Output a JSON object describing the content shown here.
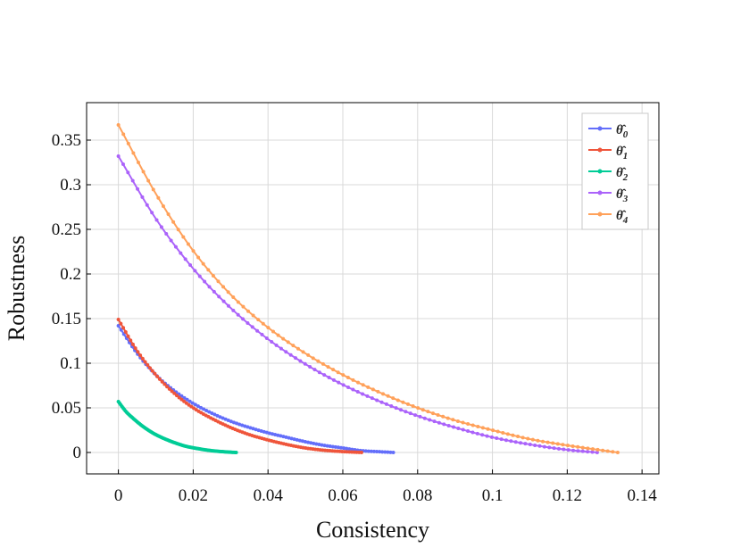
{
  "chart_data": {
    "type": "line",
    "title": "",
    "xlabel": "Consistency",
    "ylabel": "Robustness",
    "xlim": [
      -0.0085,
      0.1445
    ],
    "ylim": [
      -0.024,
      0.392
    ],
    "xticks": [
      0,
      0.02,
      0.04,
      0.06,
      0.08,
      0.1,
      0.12,
      0.14
    ],
    "xtick_labels": [
      "0",
      "0.02",
      "0.04",
      "0.06",
      "0.08",
      "0.1",
      "0.12",
      "0.14"
    ],
    "yticks": [
      0,
      0.05,
      0.1,
      0.15,
      0.2,
      0.25,
      0.3,
      0.35
    ],
    "ytick_labels": [
      "0",
      "0.05",
      "0.1",
      "0.15",
      "0.2",
      "0.25",
      "0.3",
      "0.35"
    ],
    "grid": true,
    "legend_position": "top-right",
    "series": [
      {
        "name": "θ̂0",
        "sub": "0",
        "color": "#636EFA",
        "x": [
          0,
          0.005,
          0.01,
          0.015,
          0.02,
          0.025,
          0.03,
          0.035,
          0.04,
          0.045,
          0.05,
          0.055,
          0.06,
          0.065,
          0.07,
          0.0735
        ],
        "y": [
          0.142,
          0.111,
          0.087,
          0.069,
          0.055,
          0.044,
          0.035,
          0.028,
          0.022,
          0.017,
          0.012,
          0.008,
          0.005,
          0.002,
          0.0008,
          0
        ]
      },
      {
        "name": "θ̂1",
        "sub": "1",
        "color": "#EF553B",
        "x": [
          0,
          0.005,
          0.01,
          0.015,
          0.02,
          0.025,
          0.03,
          0.035,
          0.04,
          0.045,
          0.05,
          0.055,
          0.06,
          0.065
        ],
        "y": [
          0.149,
          0.114,
          0.087,
          0.066,
          0.05,
          0.038,
          0.028,
          0.02,
          0.014,
          0.009,
          0.005,
          0.0025,
          0.001,
          0
        ]
      },
      {
        "name": "θ̂2",
        "sub": "2",
        "color": "#00CC96",
        "x": [
          0,
          0.002,
          0.004,
          0.006,
          0.008,
          0.01,
          0.012,
          0.015,
          0.018,
          0.021,
          0.024,
          0.027,
          0.03,
          0.0315
        ],
        "y": [
          0.057,
          0.046,
          0.038,
          0.031,
          0.025,
          0.02,
          0.016,
          0.011,
          0.007,
          0.0045,
          0.0025,
          0.0012,
          0.0003,
          0
        ]
      },
      {
        "name": "θ̂3",
        "sub": "3",
        "color": "#AB63FA",
        "x": [
          0,
          0.01,
          0.02,
          0.03,
          0.04,
          0.05,
          0.06,
          0.07,
          0.08,
          0.09,
          0.1,
          0.11,
          0.12,
          0.128
        ],
        "y": [
          0.332,
          0.262,
          0.206,
          0.162,
          0.127,
          0.099,
          0.076,
          0.057,
          0.041,
          0.028,
          0.017,
          0.009,
          0.003,
          0
        ]
      },
      {
        "name": "θ̂4",
        "sub": "4",
        "color": "#FFA15A",
        "x": [
          0,
          0.01,
          0.02,
          0.03,
          0.04,
          0.05,
          0.06,
          0.07,
          0.08,
          0.09,
          0.1,
          0.11,
          0.12,
          0.13,
          0.1335
        ],
        "y": [
          0.367,
          0.29,
          0.226,
          0.177,
          0.14,
          0.111,
          0.087,
          0.067,
          0.05,
          0.036,
          0.025,
          0.015,
          0.008,
          0.002,
          0
        ]
      }
    ]
  }
}
